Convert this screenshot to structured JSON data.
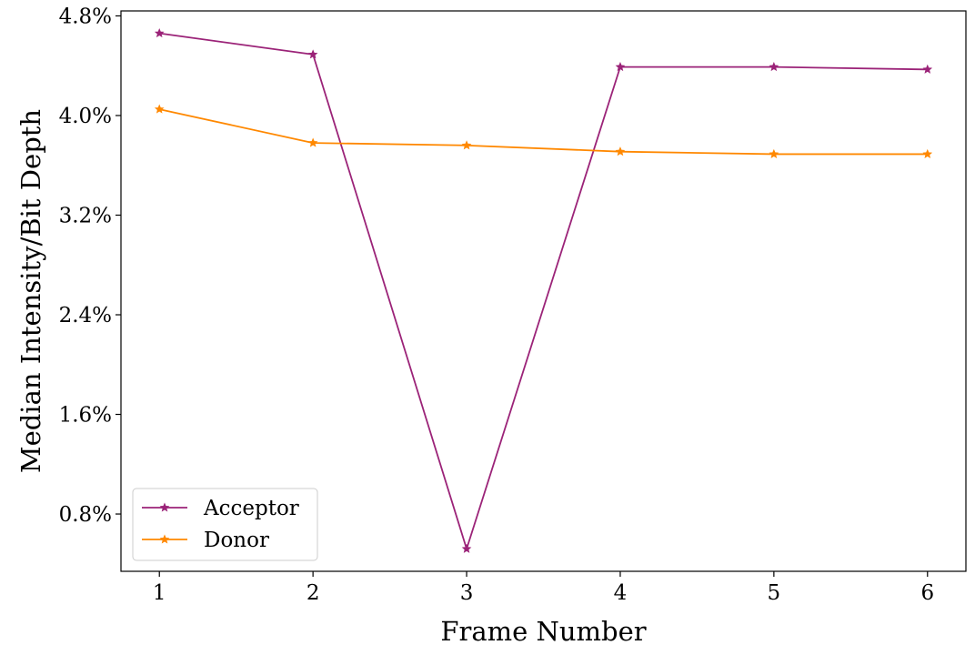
{
  "chart_data": {
    "type": "line",
    "title": "",
    "xlabel": "Frame Number",
    "ylabel": "Median Intensity/Bit Depth",
    "x": [
      1,
      2,
      3,
      4,
      5,
      6
    ],
    "xlim": [
      0.75,
      6.25
    ],
    "ylim": [
      0.0034,
      0.0484
    ],
    "x_ticks": [
      1,
      2,
      3,
      4,
      5,
      6
    ],
    "y_ticks": [
      0.008,
      0.016,
      0.024,
      0.032,
      0.04,
      0.048
    ],
    "y_tick_labels": [
      "0.8%",
      "1.6%",
      "2.4%",
      "3.2%",
      "4.0%",
      "4.8%"
    ],
    "grid": false,
    "legend_position": "lower-left",
    "series": [
      {
        "name": "Acceptor",
        "color": "#9b2378",
        "marker": "star",
        "values": [
          0.0466,
          0.0449,
          0.0052,
          0.0439,
          0.0439,
          0.0437
        ]
      },
      {
        "name": "Donor",
        "color": "#ff8800",
        "marker": "star",
        "values": [
          0.0405,
          0.0378,
          0.0376,
          0.0371,
          0.0369,
          0.0369
        ]
      }
    ]
  }
}
